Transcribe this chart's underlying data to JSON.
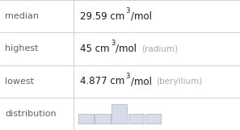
{
  "rows": [
    {
      "label": "median",
      "value_text": "29.59 cm",
      "superscript": "3",
      "unit": "/mol",
      "note": ""
    },
    {
      "label": "highest",
      "value_text": "45 cm",
      "superscript": "3",
      "unit": "/mol",
      "note": "(radium)"
    },
    {
      "label": "lowest",
      "value_text": "4.877 cm",
      "superscript": "3",
      "unit": "/mol",
      "note": "(beryllium)"
    },
    {
      "label": "distribution",
      "value_text": "",
      "superscript": "",
      "unit": "",
      "note": ""
    }
  ],
  "hist_bars": [
    1,
    1,
    2,
    1,
    1
  ],
  "hist_bar_color": "#d8dce8",
  "hist_bar_edge": "#aab0c8",
  "background": "#ffffff",
  "label_color": "#606060",
  "value_color": "#1a1a1a",
  "note_color": "#aaaaaa",
  "grid_line_color": "#d0d0d0",
  "col_split": 0.305,
  "label_fontsize": 8.0,
  "value_fontsize": 8.5,
  "note_fontsize": 7.5,
  "sup_fontsize": 6.0
}
